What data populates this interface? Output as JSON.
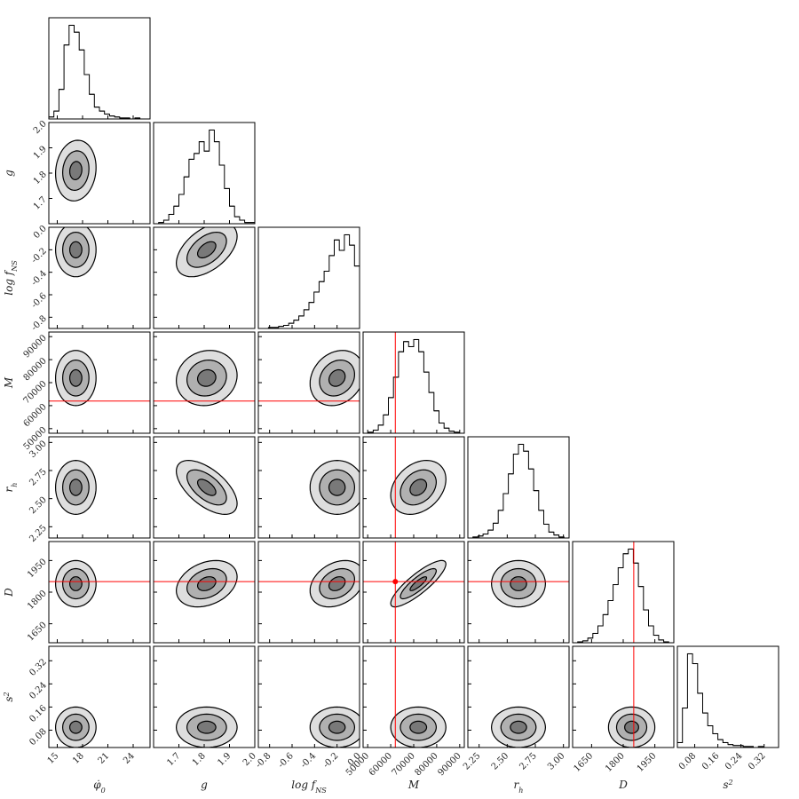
{
  "chart_data": {
    "type": "corner",
    "parameters": [
      {
        "label": {
          "text": "φ̇",
          "sub": "0"
        },
        "lim": [
          14,
          26
        ],
        "ticks": [
          15,
          18,
          21,
          24
        ],
        "mean": 17.2,
        "sd": 1.2,
        "bins": [
          14,
          14.6,
          15.2,
          15.8,
          16.4,
          17,
          17.6,
          18.2,
          18.8,
          19.4,
          20,
          20.6,
          21.2,
          21.8,
          22.4,
          23,
          23.6,
          24.2,
          24.8,
          25.4,
          26
        ],
        "counts": [
          2,
          8,
          30,
          75,
          95,
          88,
          70,
          45,
          25,
          12,
          8,
          5,
          3,
          2,
          1,
          1,
          0,
          1,
          0,
          0
        ]
      },
      {
        "label": {
          "text": "g"
        },
        "lim": [
          1.6,
          2.0
        ],
        "ticks": [
          1.7,
          1.8,
          1.9,
          {
            "value": 2,
            "label": "2.0"
          }
        ],
        "mean": 1.81,
        "sd": 0.06,
        "bins": [
          1.6,
          1.62,
          1.64,
          1.66,
          1.68,
          1.7,
          1.72,
          1.74,
          1.76,
          1.78,
          1.8,
          1.82,
          1.84,
          1.86,
          1.88,
          1.9,
          1.92,
          1.94,
          1.96,
          1.98,
          2.0
        ],
        "counts": [
          0,
          1,
          3,
          8,
          15,
          25,
          40,
          55,
          60,
          70,
          62,
          80,
          70,
          50,
          30,
          15,
          6,
          3,
          1,
          1
        ]
      },
      {
        "label": {
          "text": "log f",
          "sub": "NS"
        },
        "lim": [
          -0.9,
          0.0
        ],
        "ticks": [
          -0.8,
          -0.6,
          -0.4,
          -0.2,
          {
            "value": 0,
            "label": "0.0"
          }
        ],
        "mean": -0.2,
        "sd": 0.12,
        "bins": [
          -0.9,
          -0.855,
          -0.81,
          -0.765,
          -0.72,
          -0.675,
          -0.63,
          -0.585,
          -0.54,
          -0.495,
          -0.45,
          -0.405,
          -0.36,
          -0.315,
          -0.27,
          -0.225,
          -0.18,
          -0.135,
          -0.09,
          -0.045,
          0.0
        ],
        "counts": [
          0,
          0,
          1,
          1,
          2,
          3,
          5,
          8,
          12,
          18,
          25,
          35,
          45,
          55,
          70,
          85,
          75,
          90,
          80,
          60
        ]
      },
      {
        "label": {
          "text": "M"
        },
        "lim": [
          48000,
          92000
        ],
        "ticks": [
          50000,
          60000,
          70000,
          80000,
          90000
        ],
        "mean": 72000,
        "sd": 6000,
        "truth": 62000,
        "bins": [
          48000,
          50200,
          52400,
          54600,
          56800,
          59000,
          61200,
          63400,
          65600,
          67800,
          70000,
          72200,
          74400,
          76600,
          78800,
          81000,
          83200,
          85400,
          87600,
          89800,
          92000
        ],
        "counts": [
          0,
          1,
          3,
          8,
          18,
          35,
          55,
          80,
          90,
          85,
          92,
          80,
          60,
          40,
          22,
          10,
          5,
          2,
          1,
          0
        ]
      },
      {
        "label": {
          "text": "r",
          "sub": "h"
        },
        "lim": [
          2.15,
          3.05
        ],
        "ticks": [
          2.25,
          {
            "value": 2.5,
            "label": "2.50"
          },
          2.75,
          {
            "value": 3,
            "label": "3.00"
          }
        ],
        "mean": 2.6,
        "sd": 0.12,
        "bins": [
          2.15,
          2.195,
          2.24,
          2.285,
          2.33,
          2.375,
          2.42,
          2.465,
          2.51,
          2.555,
          2.6,
          2.645,
          2.69,
          2.735,
          2.78,
          2.825,
          2.87,
          2.915,
          2.96,
          3.005,
          3.05
        ],
        "counts": [
          0,
          1,
          2,
          4,
          8,
          15,
          28,
          45,
          65,
          85,
          95,
          88,
          70,
          48,
          28,
          14,
          6,
          3,
          1,
          0
        ]
      },
      {
        "label": {
          "text": "D"
        },
        "lim": [
          1560,
          2040
        ],
        "ticks": [
          1650,
          1800,
          1950
        ],
        "mean": 1840,
        "sd": 55,
        "truth": 1850,
        "bins": [
          1560,
          1584,
          1608,
          1632,
          1656,
          1680,
          1704,
          1728,
          1752,
          1776,
          1800,
          1824,
          1848,
          1872,
          1896,
          1920,
          1944,
          1968,
          1992,
          2016,
          2040
        ],
        "counts": [
          0,
          1,
          2,
          5,
          10,
          18,
          30,
          45,
          62,
          80,
          95,
          100,
          85,
          60,
          35,
          18,
          8,
          3,
          1,
          0
        ]
      },
      {
        "label": {
          "text": "s",
          "sup": "2"
        },
        "lim": [
          0.02,
          0.37
        ],
        "ticks": [
          0.08,
          0.16,
          0.24,
          0.32
        ],
        "mean": 0.09,
        "sd": 0.035,
        "bins": [
          0.02,
          0.0375,
          0.055,
          0.0725,
          0.09,
          0.1075,
          0.125,
          0.1425,
          0.16,
          0.1775,
          0.195,
          0.2125,
          0.23,
          0.2475,
          0.265,
          0.2825,
          0.3,
          0.3175,
          0.335,
          0.3525,
          0.37
        ],
        "counts": [
          5,
          40,
          95,
          85,
          55,
          35,
          22,
          14,
          8,
          5,
          3,
          2,
          2,
          1,
          1,
          0,
          1,
          0,
          0,
          0
        ]
      }
    ],
    "correlations": [
      [
        1,
        0.1,
        0,
        0,
        0,
        0,
        0
      ],
      [
        0.1,
        1,
        0.5,
        0.1,
        -0.6,
        0.3,
        0
      ],
      [
        0,
        0.5,
        1,
        0.2,
        0,
        0.3,
        0
      ],
      [
        0,
        0.1,
        0.2,
        1,
        0.3,
        0.85,
        0
      ],
      [
        0,
        -0.6,
        0,
        0.3,
        1,
        0,
        0
      ],
      [
        0,
        0.3,
        0.3,
        0.85,
        0,
        1,
        0
      ],
      [
        0,
        0,
        0,
        0,
        0,
        0,
        1
      ]
    ],
    "truth_color": "#ff0000",
    "line_color": "#000000"
  }
}
